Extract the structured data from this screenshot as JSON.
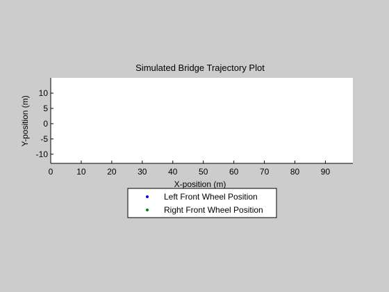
{
  "figure": {
    "background_color": "#cccccc",
    "axes_color": "#ffffff"
  },
  "chart_data": {
    "type": "scatter",
    "title": "Simulated Bridge Trajectory Plot",
    "xlabel": "X-position (m)",
    "ylabel": "Y-position (m)",
    "xlim": [
      0,
      99
    ],
    "ylim": [
      -13,
      15
    ],
    "xticks": [
      0,
      10,
      20,
      30,
      40,
      50,
      60,
      70,
      80,
      90
    ],
    "yticks": [
      -10,
      -5,
      0,
      5,
      10
    ],
    "grid": false,
    "legend_placement": "below plot",
    "series": [
      {
        "name": "Left Front Wheel Position",
        "color": "#0000ff",
        "marker": "dot",
        "points": []
      },
      {
        "name": "Right Front Wheel Position",
        "color": "#008000",
        "marker": "dot",
        "points": []
      }
    ]
  }
}
